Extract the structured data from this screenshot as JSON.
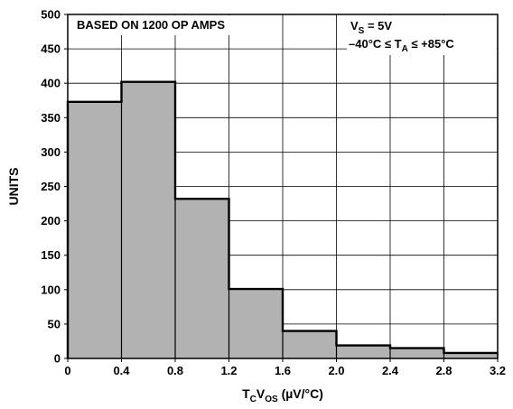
{
  "chart_data": {
    "type": "bar",
    "subtype": "histogram",
    "bins": [
      {
        "from": 0,
        "to": 0.4,
        "value": 373
      },
      {
        "from": 0.4,
        "to": 0.8,
        "value": 402
      },
      {
        "from": 0.8,
        "to": 1.2,
        "value": 232
      },
      {
        "from": 1.2,
        "to": 1.6,
        "value": 101
      },
      {
        "from": 1.6,
        "to": 2.0,
        "value": 40
      },
      {
        "from": 2.0,
        "to": 2.4,
        "value": 19
      },
      {
        "from": 2.4,
        "to": 2.8,
        "value": 15
      },
      {
        "from": 2.8,
        "to": 3.2,
        "value": 8
      }
    ],
    "xlim": [
      0,
      3.2
    ],
    "ylim": [
      0,
      500
    ],
    "xticks": [
      "0",
      "0.4",
      "0.8",
      "1.2",
      "1.6",
      "2.0",
      "2.4",
      "2.8",
      "3.2"
    ],
    "yticks": [
      "0",
      "50",
      "100",
      "150",
      "200",
      "250",
      "300",
      "350",
      "400",
      "450",
      "500"
    ],
    "xlabel": {
      "main": "T",
      "sub1": "C",
      "mid": "V",
      "sub2": "OS",
      "rest": " (µV/°C)"
    },
    "ylabel": "UNITS",
    "grid": true,
    "bar_color": "#b2b2b2",
    "annotations": {
      "left": "BASED ON 1200 OP AMPS",
      "right_line1": {
        "main": "V",
        "sub": "S",
        "rest": " = 5V"
      },
      "right_line2": {
        "pre": "–40°C ≤ T",
        "sub": "A",
        "rest": " ≤ +85°C"
      }
    }
  }
}
